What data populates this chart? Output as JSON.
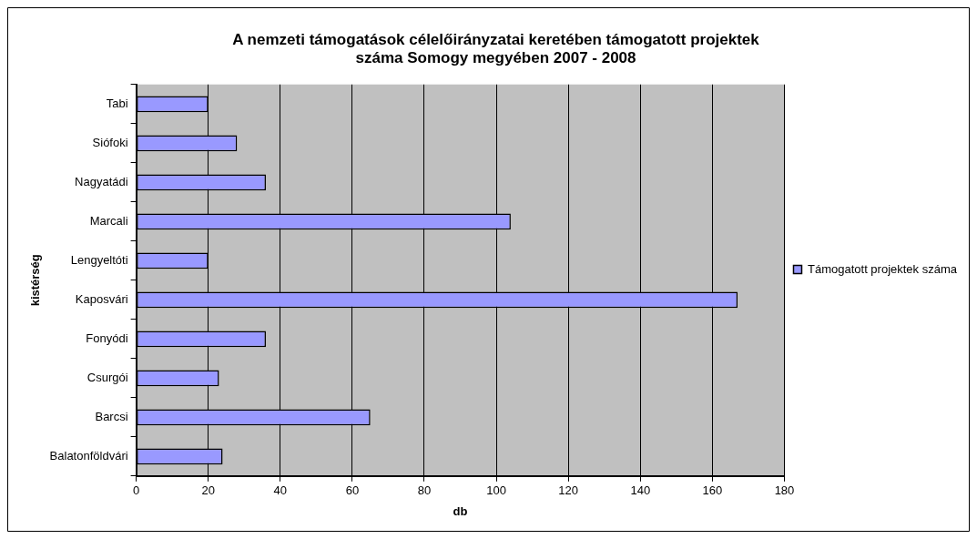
{
  "chart_data": {
    "type": "bar",
    "orientation": "horizontal",
    "title": "A nemzeti támogatások célelőirányzatai keretében támogatott projektek\nszáma Somogy megyében 2007 - 2008",
    "xlabel": "db",
    "ylabel": "kistérség",
    "categories": [
      "Tabi",
      "Siófoki",
      "Nagyatádi",
      "Marcali",
      "Lengyeltóti",
      "Kaposvári",
      "Fonyódi",
      "Csurgói",
      "Barcsi",
      "Balatonföldvári"
    ],
    "series": [
      {
        "name": "Támogatott projektek száma",
        "color": "#9999ff",
        "values": [
          20,
          28,
          36,
          104,
          20,
          167,
          36,
          23,
          65,
          24
        ]
      }
    ],
    "xlim": [
      0,
      180
    ],
    "xticks": [
      0,
      20,
      40,
      60,
      80,
      100,
      120,
      140,
      160,
      180
    ],
    "grid": "x",
    "legend": "right"
  }
}
